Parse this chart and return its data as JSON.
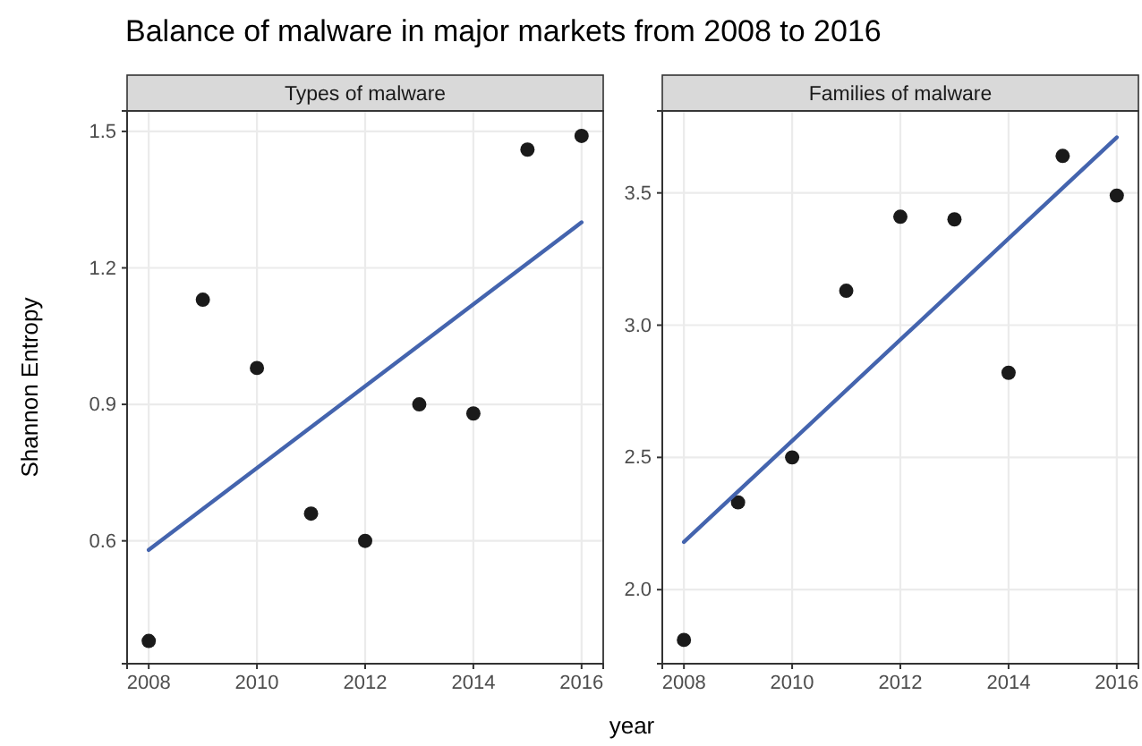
{
  "chart_data": [
    {
      "type": "scatter",
      "title": "Balance of malware in major markets from 2008 to 2016",
      "subtitle": "Types of malware",
      "xlabel": "year",
      "ylabel": "Shannon Entropy",
      "xlim": [
        2007.6,
        2016.4
      ],
      "xticks": [
        2008,
        2010,
        2012,
        2014,
        2016
      ],
      "ylim": [
        0.33,
        1.545
      ],
      "yticks": [
        0.6,
        0.9,
        1.2,
        1.5
      ],
      "grid": true,
      "series": [
        {
          "color": "#1a1a1a",
          "marker": "circle",
          "x": [
            2008,
            2009,
            2010,
            2011,
            2012,
            2013,
            2014,
            2015,
            2016
          ],
          "values": [
            0.38,
            1.13,
            0.98,
            0.66,
            0.6,
            0.9,
            0.88,
            1.46,
            1.49
          ]
        },
        {
          "type": "line",
          "color": "#4464ae",
          "marker": "none",
          "x": [
            2008,
            2016
          ],
          "values": [
            0.58,
            1.3
          ]
        }
      ]
    },
    {
      "type": "scatter",
      "subtitle": "Families of malware",
      "xlim": [
        2007.6,
        2016.4
      ],
      "xticks": [
        2008,
        2010,
        2012,
        2014,
        2016
      ],
      "ylim": [
        1.72,
        3.81
      ],
      "yticks": [
        {
          "value": 2,
          "label": "2.0"
        },
        2.5,
        {
          "value": 3,
          "label": "3.0"
        },
        3.5
      ],
      "grid": true,
      "series": [
        {
          "color": "#1a1a1a",
          "marker": "circle",
          "x": [
            2008,
            2009,
            2010,
            2011,
            2012,
            2013,
            2014,
            2015,
            2016
          ],
          "values": [
            1.81,
            2.33,
            2.5,
            3.13,
            3.41,
            3.4,
            2.82,
            3.64,
            3.49
          ]
        },
        {
          "type": "line",
          "color": "#4464ae",
          "marker": "none",
          "x": [
            2008,
            2016
          ],
          "values": [
            2.18,
            3.71
          ]
        }
      ]
    }
  ]
}
